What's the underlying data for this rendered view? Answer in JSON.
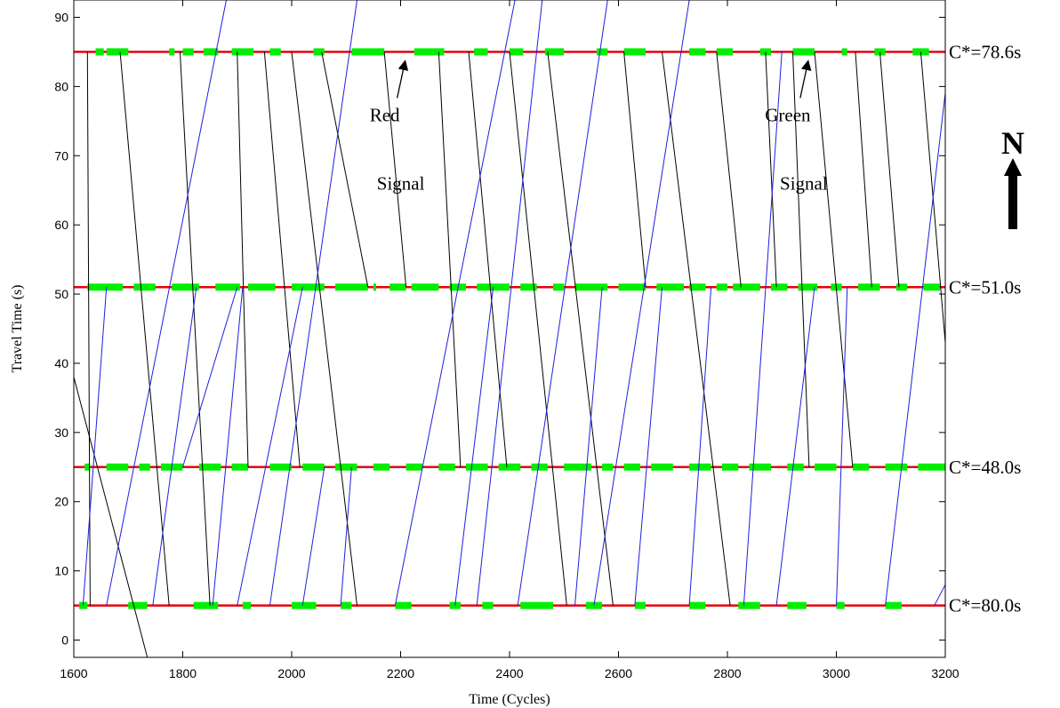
{
  "chart_data": {
    "type": "line",
    "xlabel": "Time (Cycles)",
    "ylabel": "Travel Time (s)",
    "xlim": [
      1600,
      3200
    ],
    "ylim": [
      -2.5,
      92.5
    ],
    "xticks": [
      1600,
      1800,
      2000,
      2200,
      2400,
      2600,
      2800,
      3000,
      3200
    ],
    "yticks": [
      0,
      10,
      20,
      30,
      40,
      50,
      60,
      70,
      80,
      90
    ],
    "grid": false,
    "intersections": [
      {
        "y": 85,
        "cycle_label": "C*=78.6s",
        "green": [
          [
            1640,
            1655
          ],
          [
            1660,
            1700
          ],
          [
            1775,
            1785
          ],
          [
            1800,
            1820
          ],
          [
            1838,
            1865
          ],
          [
            1890,
            1930
          ],
          [
            1960,
            1980
          ],
          [
            2040,
            2060
          ],
          [
            2110,
            2170
          ],
          [
            2225,
            2280
          ],
          [
            2335,
            2360
          ],
          [
            2400,
            2425
          ],
          [
            2465,
            2500
          ],
          [
            2560,
            2580
          ],
          [
            2610,
            2650
          ],
          [
            2730,
            2760
          ],
          [
            2780,
            2810
          ],
          [
            2860,
            2880
          ],
          [
            2920,
            2960
          ],
          [
            3010,
            3020
          ],
          [
            3070,
            3090
          ],
          [
            3140,
            3170
          ]
        ]
      },
      {
        "y": 51,
        "cycle_label": "C*=51.0s",
        "green": [
          [
            1625,
            1690
          ],
          [
            1710,
            1750
          ],
          [
            1780,
            1830
          ],
          [
            1860,
            1905
          ],
          [
            1920,
            1970
          ],
          [
            2000,
            2060
          ],
          [
            2080,
            2140
          ],
          [
            2150,
            2155
          ],
          [
            2180,
            2210
          ],
          [
            2220,
            2270
          ],
          [
            2290,
            2320
          ],
          [
            2340,
            2400
          ],
          [
            2420,
            2450
          ],
          [
            2480,
            2500
          ],
          [
            2520,
            2580
          ],
          [
            2600,
            2650
          ],
          [
            2670,
            2720
          ],
          [
            2730,
            2760
          ],
          [
            2780,
            2800
          ],
          [
            2810,
            2860
          ],
          [
            2880,
            2910
          ],
          [
            2930,
            2965
          ],
          [
            2990,
            3010
          ],
          [
            3040,
            3080
          ],
          [
            3110,
            3130
          ],
          [
            3160,
            3190
          ]
        ]
      },
      {
        "y": 25,
        "cycle_label": "C*=48.0s",
        "green": [
          [
            1620,
            1630
          ],
          [
            1660,
            1700
          ],
          [
            1720,
            1740
          ],
          [
            1760,
            1800
          ],
          [
            1830,
            1870
          ],
          [
            1890,
            1920
          ],
          [
            1960,
            2000
          ],
          [
            2020,
            2060
          ],
          [
            2080,
            2120
          ],
          [
            2150,
            2180
          ],
          [
            2210,
            2240
          ],
          [
            2270,
            2300
          ],
          [
            2320,
            2360
          ],
          [
            2380,
            2420
          ],
          [
            2440,
            2470
          ],
          [
            2500,
            2550
          ],
          [
            2570,
            2590
          ],
          [
            2610,
            2640
          ],
          [
            2660,
            2700
          ],
          [
            2730,
            2770
          ],
          [
            2790,
            2820
          ],
          [
            2840,
            2880
          ],
          [
            2910,
            2940
          ],
          [
            2960,
            3000
          ],
          [
            3030,
            3060
          ],
          [
            3090,
            3130
          ],
          [
            3150,
            3200
          ]
        ]
      },
      {
        "y": 5,
        "cycle_label": "C*=80.0s",
        "green": [
          [
            1610,
            1625
          ],
          [
            1700,
            1735
          ],
          [
            1820,
            1865
          ],
          [
            1910,
            1925
          ],
          [
            2000,
            2045
          ],
          [
            2090,
            2110
          ],
          [
            2190,
            2220
          ],
          [
            2290,
            2310
          ],
          [
            2350,
            2370
          ],
          [
            2420,
            2480
          ],
          [
            2540,
            2570
          ],
          [
            2630,
            2650
          ],
          [
            2730,
            2760
          ],
          [
            2820,
            2860
          ],
          [
            2910,
            2945
          ],
          [
            3000,
            3015
          ],
          [
            3090,
            3120
          ]
        ]
      }
    ],
    "northbound_series": [
      {
        "x": [
          1617,
          1660
        ],
        "y": [
          5,
          51
        ]
      },
      {
        "x": [
          1660,
          1880
        ],
        "y": [
          5,
          92.5
        ]
      },
      {
        "x": [
          1745,
          1825
        ],
        "y": [
          5,
          51
        ]
      },
      {
        "x": [
          1800,
          1900
        ],
        "y": [
          25,
          51
        ]
      },
      {
        "x": [
          1855,
          1910
        ],
        "y": [
          5,
          51
        ]
      },
      {
        "x": [
          1900,
          2020
        ],
        "y": [
          5,
          51
        ]
      },
      {
        "x": [
          1960,
          2120
        ],
        "y": [
          5,
          92.5
        ]
      },
      {
        "x": [
          2020,
          2060
        ],
        "y": [
          5,
          25
        ]
      },
      {
        "x": [
          2090,
          2110
        ],
        "y": [
          5,
          25
        ]
      },
      {
        "x": [
          2190,
          2410
        ],
        "y": [
          5,
          92.5
        ]
      },
      {
        "x": [
          2300,
          2370
        ],
        "y": [
          5,
          51
        ]
      },
      {
        "x": [
          2340,
          2460
        ],
        "y": [
          5,
          92.5
        ]
      },
      {
        "x": [
          2415,
          2580
        ],
        "y": [
          5,
          92.5
        ]
      },
      {
        "x": [
          2520,
          2570
        ],
        "y": [
          5,
          51
        ]
      },
      {
        "x": [
          2555,
          2730
        ],
        "y": [
          5,
          92.5
        ]
      },
      {
        "x": [
          2630,
          2680
        ],
        "y": [
          5,
          51
        ]
      },
      {
        "x": [
          2730,
          2770
        ],
        "y": [
          5,
          51
        ]
      },
      {
        "x": [
          2830,
          2900
        ],
        "y": [
          5,
          85
        ]
      },
      {
        "x": [
          2890,
          2960
        ],
        "y": [
          5,
          51
        ]
      },
      {
        "x": [
          3000,
          3020
        ],
        "y": [
          5,
          51
        ]
      },
      {
        "x": [
          3090,
          3220
        ],
        "y": [
          5,
          92.5
        ]
      },
      {
        "x": [
          3180,
          3200
        ],
        "y": [
          5,
          8
        ]
      }
    ],
    "southbound_series": [
      {
        "x": [
          1600,
          1735
        ],
        "y": [
          38,
          -2.5
        ]
      },
      {
        "x": [
          1625,
          1630
        ],
        "y": [
          85,
          5
        ]
      },
      {
        "x": [
          1685,
          1775
        ],
        "y": [
          85,
          5
        ]
      },
      {
        "x": [
          1795,
          1850
        ],
        "y": [
          85,
          5
        ]
      },
      {
        "x": [
          1900,
          1920
        ],
        "y": [
          85,
          25
        ]
      },
      {
        "x": [
          1950,
          2015
        ],
        "y": [
          85,
          25
        ]
      },
      {
        "x": [
          2000,
          2120
        ],
        "y": [
          85,
          5
        ]
      },
      {
        "x": [
          2055,
          2140
        ],
        "y": [
          85,
          51
        ]
      },
      {
        "x": [
          2170,
          2210
        ],
        "y": [
          85,
          51
        ]
      },
      {
        "x": [
          2270,
          2310
        ],
        "y": [
          85,
          25
        ]
      },
      {
        "x": [
          2325,
          2395
        ],
        "y": [
          85,
          25
        ]
      },
      {
        "x": [
          2400,
          2505
        ],
        "y": [
          85,
          5
        ]
      },
      {
        "x": [
          2470,
          2590
        ],
        "y": [
          85,
          5
        ]
      },
      {
        "x": [
          2610,
          2650
        ],
        "y": [
          85,
          51
        ]
      },
      {
        "x": [
          2680,
          2805
        ],
        "y": [
          85,
          5
        ]
      },
      {
        "x": [
          2780,
          2825
        ],
        "y": [
          85,
          51
        ]
      },
      {
        "x": [
          2870,
          2890
        ],
        "y": [
          85,
          51
        ]
      },
      {
        "x": [
          2920,
          2950
        ],
        "y": [
          85,
          25
        ]
      },
      {
        "x": [
          2960,
          3030
        ],
        "y": [
          85,
          25
        ]
      },
      {
        "x": [
          3035,
          3065
        ],
        "y": [
          85,
          51
        ]
      },
      {
        "x": [
          3080,
          3115
        ],
        "y": [
          85,
          51
        ]
      },
      {
        "x": [
          3155,
          3200
        ],
        "y": [
          85,
          43
        ]
      }
    ],
    "annotations": [
      {
        "line1": "Red",
        "line2": "Signal",
        "arrow_to_x": 2210,
        "arrow_to_y": 85
      },
      {
        "line1": "Green",
        "line2": "Signal",
        "arrow_to_x": 2950,
        "arrow_to_y": 85
      }
    ],
    "north_label": "N",
    "colors": {
      "red_signal": "#e8000b",
      "green_signal": "#00ee00",
      "northbound": "#1f1fe0",
      "southbound": "#000000"
    }
  }
}
